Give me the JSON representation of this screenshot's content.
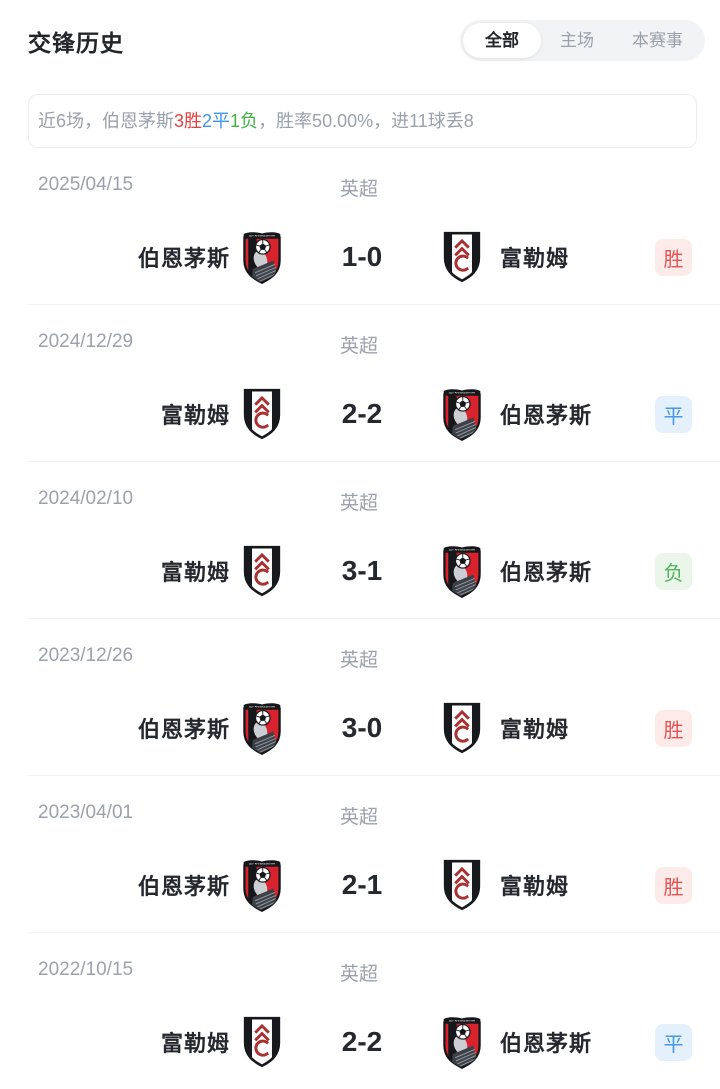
{
  "header": {
    "title": "交锋历史",
    "tabs": [
      {
        "label": "全部",
        "active": true
      },
      {
        "label": "主场",
        "active": false
      },
      {
        "label": "本赛事",
        "active": false
      }
    ]
  },
  "summary": {
    "segments": [
      {
        "text": "近6场，伯恩茅斯",
        "color": "gray"
      },
      {
        "text": "3胜",
        "color": "red"
      },
      {
        "text": "2平",
        "color": "blue"
      },
      {
        "text": "1负",
        "color": "green"
      },
      {
        "text": "，胜率50.00%，进11球丢8",
        "color": "gray"
      }
    ]
  },
  "matches": [
    {
      "date": "2025/04/15",
      "league": "英超",
      "home": "伯恩茅斯",
      "home_logo": "bournemouth",
      "score": "1-0",
      "away": "富勒姆",
      "away_logo": "fulham",
      "result": "胜",
      "result_type": "win"
    },
    {
      "date": "2024/12/29",
      "league": "英超",
      "home": "富勒姆",
      "home_logo": "fulham",
      "score": "2-2",
      "away": "伯恩茅斯",
      "away_logo": "bournemouth",
      "result": "平",
      "result_type": "draw"
    },
    {
      "date": "2024/02/10",
      "league": "英超",
      "home": "富勒姆",
      "home_logo": "fulham",
      "score": "3-1",
      "away": "伯恩茅斯",
      "away_logo": "bournemouth",
      "result": "负",
      "result_type": "loss"
    },
    {
      "date": "2023/12/26",
      "league": "英超",
      "home": "伯恩茅斯",
      "home_logo": "bournemouth",
      "score": "3-0",
      "away": "富勒姆",
      "away_logo": "fulham",
      "result": "胜",
      "result_type": "win"
    },
    {
      "date": "2023/04/01",
      "league": "英超",
      "home": "伯恩茅斯",
      "home_logo": "bournemouth",
      "score": "2-1",
      "away": "富勒姆",
      "away_logo": "fulham",
      "result": "胜",
      "result_type": "win"
    },
    {
      "date": "2022/10/15",
      "league": "英超",
      "home": "富勒姆",
      "home_logo": "fulham",
      "score": "2-2",
      "away": "伯恩茅斯",
      "away_logo": "bournemouth",
      "result": "平",
      "result_type": "draw"
    }
  ],
  "colors": {
    "accent_red": "#e64340",
    "accent_blue": "#3c96ef",
    "accent_green": "#43b244",
    "badge_win_bg": "#fcebe9",
    "badge_draw_bg": "#e4f0fb",
    "badge_loss_bg": "#e9f6e9",
    "muted_text": "#9ba1ad",
    "dark_text": "#25282e"
  }
}
